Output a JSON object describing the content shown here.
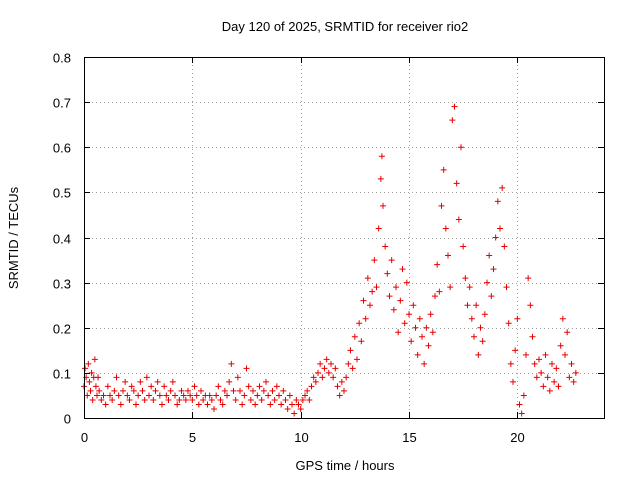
{
  "chart_data": {
    "type": "scatter",
    "title": "Day 120 of 2025, SRMTID for receiver rio2",
    "xlabel": "GPS time / hours",
    "ylabel": "SRMTID / TECUs",
    "xlim": [
      0,
      24
    ],
    "ylim": [
      0,
      0.8
    ],
    "x_ticks": [
      0,
      5,
      10,
      15,
      20
    ],
    "x_tick_labels": [
      "0",
      "5",
      "10",
      "15",
      "20"
    ],
    "y_ticks": [
      0,
      0.1,
      0.2,
      0.3,
      0.4,
      0.5,
      0.6,
      0.7,
      0.8
    ],
    "y_tick_labels": [
      "0",
      "0.1",
      "0.2",
      "0.3",
      "0.4",
      "0.5",
      "0.6",
      "0.7",
      "0.8"
    ],
    "grid": true,
    "marker": "+",
    "color": "#e80000",
    "series": [
      {
        "name": "rio2",
        "points": [
          [
            0.0,
            0.07
          ],
          [
            0.05,
            0.11
          ],
          [
            0.1,
            0.09
          ],
          [
            0.15,
            0.05
          ],
          [
            0.2,
            0.12
          ],
          [
            0.25,
            0.08
          ],
          [
            0.3,
            0.06
          ],
          [
            0.35,
            0.1
          ],
          [
            0.4,
            0.04
          ],
          [
            0.45,
            0.09
          ],
          [
            0.5,
            0.13
          ],
          [
            0.55,
            0.07
          ],
          [
            0.6,
            0.05
          ],
          [
            0.65,
            0.09
          ],
          [
            0.7,
            0.06
          ],
          [
            0.8,
            0.04
          ],
          [
            0.9,
            0.05
          ],
          [
            1.0,
            0.03
          ],
          [
            1.1,
            0.07
          ],
          [
            1.2,
            0.05
          ],
          [
            1.3,
            0.04
          ],
          [
            1.4,
            0.06
          ],
          [
            1.5,
            0.09
          ],
          [
            1.6,
            0.05
          ],
          [
            1.7,
            0.03
          ],
          [
            1.8,
            0.06
          ],
          [
            1.9,
            0.08
          ],
          [
            2.0,
            0.05
          ],
          [
            2.1,
            0.04
          ],
          [
            2.2,
            0.07
          ],
          [
            2.3,
            0.06
          ],
          [
            2.4,
            0.03
          ],
          [
            2.5,
            0.05
          ],
          [
            2.6,
            0.08
          ],
          [
            2.7,
            0.06
          ],
          [
            2.8,
            0.04
          ],
          [
            2.9,
            0.09
          ],
          [
            3.0,
            0.05
          ],
          [
            3.1,
            0.07
          ],
          [
            3.2,
            0.04
          ],
          [
            3.3,
            0.06
          ],
          [
            3.4,
            0.08
          ],
          [
            3.5,
            0.05
          ],
          [
            3.6,
            0.03
          ],
          [
            3.7,
            0.07
          ],
          [
            3.8,
            0.05
          ],
          [
            3.9,
            0.04
          ],
          [
            4.0,
            0.06
          ],
          [
            4.1,
            0.08
          ],
          [
            4.2,
            0.05
          ],
          [
            4.3,
            0.03
          ],
          [
            4.4,
            0.04
          ],
          [
            4.5,
            0.06
          ],
          [
            4.6,
            0.05
          ],
          [
            4.7,
            0.04
          ],
          [
            4.8,
            0.06
          ],
          [
            4.9,
            0.05
          ],
          [
            5.0,
            0.04
          ],
          [
            5.1,
            0.07
          ],
          [
            5.2,
            0.05
          ],
          [
            5.3,
            0.03
          ],
          [
            5.4,
            0.06
          ],
          [
            5.5,
            0.04
          ],
          [
            5.6,
            0.05
          ],
          [
            5.7,
            0.03
          ],
          [
            5.8,
            0.05
          ],
          [
            5.9,
            0.04
          ],
          [
            6.0,
            0.02
          ],
          [
            6.1,
            0.05
          ],
          [
            6.2,
            0.07
          ],
          [
            6.3,
            0.04
          ],
          [
            6.4,
            0.03
          ],
          [
            6.5,
            0.06
          ],
          [
            6.6,
            0.05
          ],
          [
            6.7,
            0.08
          ],
          [
            6.8,
            0.12
          ],
          [
            6.9,
            0.06
          ],
          [
            7.0,
            0.04
          ],
          [
            7.1,
            0.09
          ],
          [
            7.2,
            0.06
          ],
          [
            7.3,
            0.03
          ],
          [
            7.4,
            0.05
          ],
          [
            7.5,
            0.11
          ],
          [
            7.6,
            0.07
          ],
          [
            7.7,
            0.04
          ],
          [
            7.8,
            0.06
          ],
          [
            7.9,
            0.03
          ],
          [
            8.0,
            0.05
          ],
          [
            8.1,
            0.07
          ],
          [
            8.2,
            0.04
          ],
          [
            8.3,
            0.06
          ],
          [
            8.4,
            0.08
          ],
          [
            8.5,
            0.05
          ],
          [
            8.6,
            0.03
          ],
          [
            8.7,
            0.06
          ],
          [
            8.8,
            0.04
          ],
          [
            8.9,
            0.07
          ],
          [
            9.0,
            0.05
          ],
          [
            9.1,
            0.03
          ],
          [
            9.2,
            0.06
          ],
          [
            9.3,
            0.04
          ],
          [
            9.4,
            0.02
          ],
          [
            9.5,
            0.05
          ],
          [
            9.6,
            0.03
          ],
          [
            9.7,
            0.01
          ],
          [
            9.8,
            0.04
          ],
          [
            9.9,
            0.03
          ],
          [
            10.0,
            0.02
          ],
          [
            10.1,
            0.04
          ],
          [
            10.2,
            0.05
          ],
          [
            10.3,
            0.06
          ],
          [
            10.4,
            0.04
          ],
          [
            10.5,
            0.07
          ],
          [
            10.6,
            0.09
          ],
          [
            10.7,
            0.08
          ],
          [
            10.8,
            0.1
          ],
          [
            10.9,
            0.12
          ],
          [
            11.0,
            0.09
          ],
          [
            11.1,
            0.11
          ],
          [
            11.2,
            0.13
          ],
          [
            11.3,
            0.1
          ],
          [
            11.4,
            0.12
          ],
          [
            11.5,
            0.09
          ],
          [
            11.6,
            0.11
          ],
          [
            11.7,
            0.07
          ],
          [
            11.8,
            0.05
          ],
          [
            11.9,
            0.08
          ],
          [
            12.0,
            0.06
          ],
          [
            12.1,
            0.09
          ],
          [
            12.2,
            0.12
          ],
          [
            12.3,
            0.15
          ],
          [
            12.4,
            0.11
          ],
          [
            12.5,
            0.18
          ],
          [
            12.6,
            0.13
          ],
          [
            12.7,
            0.21
          ],
          [
            12.8,
            0.17
          ],
          [
            12.9,
            0.26
          ],
          [
            13.0,
            0.22
          ],
          [
            13.1,
            0.31
          ],
          [
            13.2,
            0.25
          ],
          [
            13.3,
            0.28
          ],
          [
            13.4,
            0.35
          ],
          [
            13.5,
            0.29
          ],
          [
            13.6,
            0.42
          ],
          [
            13.7,
            0.53
          ],
          [
            13.75,
            0.58
          ],
          [
            13.8,
            0.47
          ],
          [
            13.9,
            0.38
          ],
          [
            14.0,
            0.32
          ],
          [
            14.1,
            0.27
          ],
          [
            14.2,
            0.35
          ],
          [
            14.3,
            0.24
          ],
          [
            14.4,
            0.29
          ],
          [
            14.5,
            0.19
          ],
          [
            14.6,
            0.26
          ],
          [
            14.7,
            0.33
          ],
          [
            14.8,
            0.21
          ],
          [
            14.9,
            0.3
          ],
          [
            15.0,
            0.23
          ],
          [
            15.1,
            0.17
          ],
          [
            15.2,
            0.25
          ],
          [
            15.3,
            0.2
          ],
          [
            15.4,
            0.14
          ],
          [
            15.5,
            0.22
          ],
          [
            15.6,
            0.18
          ],
          [
            15.7,
            0.12
          ],
          [
            15.8,
            0.2
          ],
          [
            15.9,
            0.16
          ],
          [
            16.0,
            0.23
          ],
          [
            16.1,
            0.19
          ],
          [
            16.2,
            0.27
          ],
          [
            16.3,
            0.34
          ],
          [
            16.4,
            0.28
          ],
          [
            16.5,
            0.47
          ],
          [
            16.6,
            0.55
          ],
          [
            16.7,
            0.42
          ],
          [
            16.8,
            0.36
          ],
          [
            16.9,
            0.29
          ],
          [
            17.0,
            0.66
          ],
          [
            17.1,
            0.69
          ],
          [
            17.2,
            0.52
          ],
          [
            17.3,
            0.44
          ],
          [
            17.4,
            0.6
          ],
          [
            17.5,
            0.38
          ],
          [
            17.6,
            0.31
          ],
          [
            17.7,
            0.25
          ],
          [
            17.8,
            0.29
          ],
          [
            17.9,
            0.22
          ],
          [
            18.0,
            0.18
          ],
          [
            18.1,
            0.25
          ],
          [
            18.2,
            0.14
          ],
          [
            18.3,
            0.2
          ],
          [
            18.4,
            0.17
          ],
          [
            18.5,
            0.23
          ],
          [
            18.6,
            0.3
          ],
          [
            18.7,
            0.36
          ],
          [
            18.8,
            0.27
          ],
          [
            18.9,
            0.33
          ],
          [
            19.0,
            0.4
          ],
          [
            19.1,
            0.48
          ],
          [
            19.2,
            0.42
          ],
          [
            19.3,
            0.51
          ],
          [
            19.4,
            0.38
          ],
          [
            19.5,
            0.29
          ],
          [
            19.6,
            0.21
          ],
          [
            19.7,
            0.12
          ],
          [
            19.8,
            0.08
          ],
          [
            19.9,
            0.15
          ],
          [
            20.0,
            0.22
          ],
          [
            20.1,
            0.03
          ],
          [
            20.2,
            0.01
          ],
          [
            20.3,
            0.05
          ],
          [
            20.4,
            0.14
          ],
          [
            20.5,
            0.31
          ],
          [
            20.6,
            0.25
          ],
          [
            20.7,
            0.18
          ],
          [
            20.8,
            0.12
          ],
          [
            20.9,
            0.09
          ],
          [
            21.0,
            0.13
          ],
          [
            21.1,
            0.1
          ],
          [
            21.2,
            0.07
          ],
          [
            21.3,
            0.14
          ],
          [
            21.4,
            0.09
          ],
          [
            21.5,
            0.06
          ],
          [
            21.6,
            0.12
          ],
          [
            21.7,
            0.08
          ],
          [
            21.8,
            0.11
          ],
          [
            21.9,
            0.07
          ],
          [
            22.0,
            0.16
          ],
          [
            22.1,
            0.22
          ],
          [
            22.2,
            0.14
          ],
          [
            22.3,
            0.19
          ],
          [
            22.4,
            0.09
          ],
          [
            22.5,
            0.12
          ],
          [
            22.6,
            0.08
          ],
          [
            22.7,
            0.1
          ]
        ]
      }
    ]
  }
}
